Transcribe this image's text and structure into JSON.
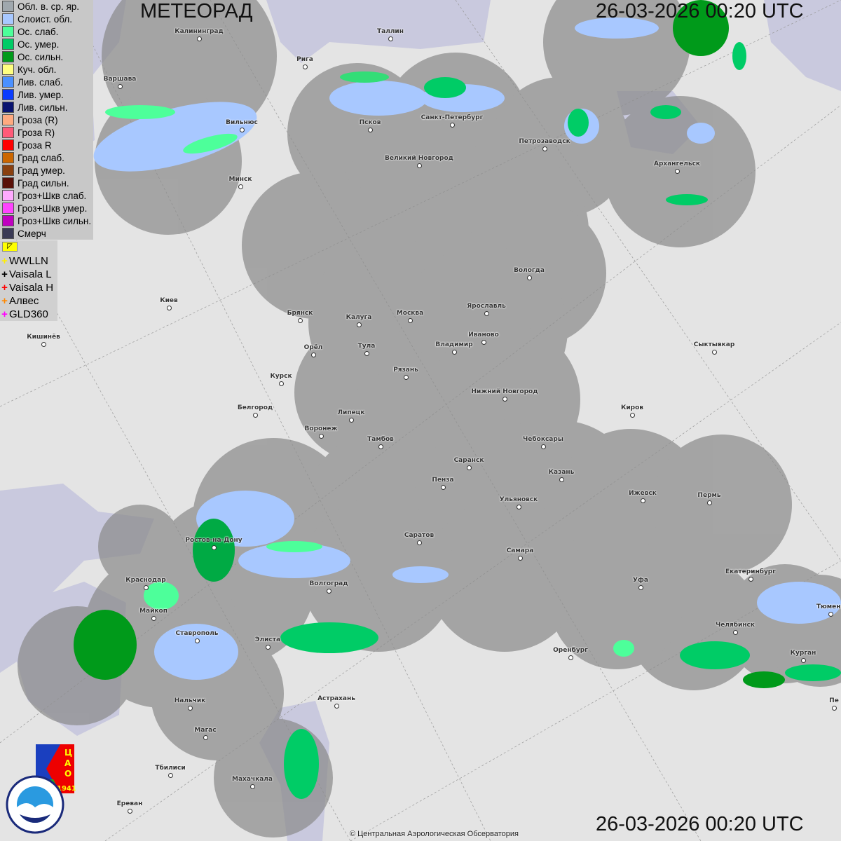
{
  "header": {
    "title": "МЕТЕОРАД",
    "timestamp": "26-03-2026  00:20 UTC"
  },
  "footer": {
    "timestamp": "26-03-2026  00:20 UTC",
    "copyright": "© Центральная Аэрологическая Обсерватория"
  },
  "legend": [
    {
      "label": "Обл. в. ср. яр.",
      "color": "#a0a8ae"
    },
    {
      "label": "Слоист. обл.",
      "color": "#a8c8ff"
    },
    {
      "label": "Ос. слаб.",
      "color": "#4dff9a"
    },
    {
      "label": "Ос. умер.",
      "color": "#00cc66"
    },
    {
      "label": "Ос. сильн.",
      "color": "#009a1a"
    },
    {
      "label": "Куч. обл.",
      "color": "#ffff80"
    },
    {
      "label": "Лив. слаб.",
      "color": "#4a90ff"
    },
    {
      "label": "Лив. умер.",
      "color": "#0a3cff"
    },
    {
      "label": "Лив. сильн.",
      "color": "#0a1470"
    },
    {
      "label": "Гроза (R)",
      "color": "#ffaa80"
    },
    {
      "label": "Гроза R)",
      "color": "#ff5a78"
    },
    {
      "label": "Гроза R",
      "color": "#ff0000"
    },
    {
      "label": "Град слаб.",
      "color": "#cc6600"
    },
    {
      "label": "Град умер.",
      "color": "#8a4010"
    },
    {
      "label": "Град сильн.",
      "color": "#5a1008"
    },
    {
      "label": "Гроз+Шкв слаб.",
      "color": "#ffaaff"
    },
    {
      "label": "Гроз+Шкв умер.",
      "color": "#ff44ff"
    },
    {
      "label": "Гроз+Шкв сильн.",
      "color": "#c000c0"
    },
    {
      "label": "Смерч",
      "color": "#3a3a55"
    }
  ],
  "lightning": [
    {
      "label": "WWLLN",
      "color": "#ffee00"
    },
    {
      "label": "Vaisala L",
      "color": "#000000"
    },
    {
      "label": "Vaisala H",
      "color": "#ff0000"
    },
    {
      "label": "Алвес",
      "color": "#ff8800"
    },
    {
      "label": "GLD360",
      "color": "#ff00ff"
    }
  ],
  "logos": {
    "cao": "ЦАО 1941",
    "roshydromet": "РОСГИДРОМЕТ ROSHYDROMET"
  },
  "cities": [
    "Калининград",
    "Таллин",
    "Рига",
    "Варшава",
    "Вильнюс",
    "Псков",
    "Санкт-Петербург",
    "Петрозаводск",
    "Архангельск",
    "Великий Новгород",
    "Минск",
    "Вологда",
    "Киев",
    "Брянск",
    "Калуга",
    "Москва",
    "Ярославль",
    "Иваново",
    "Владимир",
    "Кишинёв",
    "Орёл",
    "Тула",
    "Сыктывкар",
    "Курск",
    "Рязань",
    "Нижний Новгород",
    "Киров",
    "Белгород",
    "Липецк",
    "Воронеж",
    "Тамбов",
    "Чебоксары",
    "Саранск",
    "Казань",
    "Пенза",
    "Ижевск",
    "Пермь",
    "Ульяновск",
    "Саратов",
    "Самара",
    "Ростов-на-Дону",
    "Краснодар",
    "Волгоград",
    "Екатеринбург",
    "Уфа",
    "Майкоп",
    "Тюмень",
    "Челябинск",
    "Ставрополь",
    "Элиста",
    "Оренбург",
    "Курган",
    "Нальчик",
    "Астрахань",
    "Магас",
    "Тбилиси",
    "Махачкала",
    "Ереван",
    "Пе"
  ]
}
